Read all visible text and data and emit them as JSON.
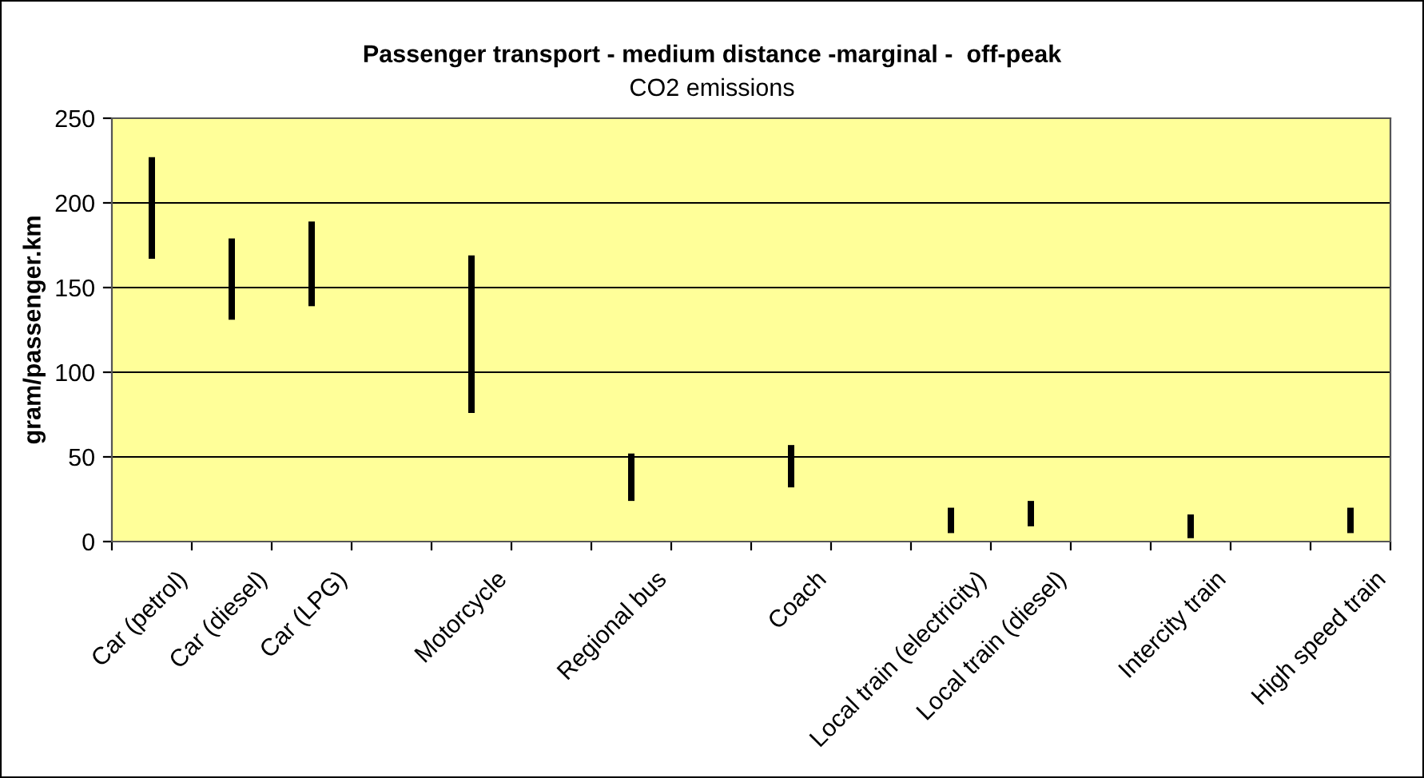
{
  "chart_data": {
    "type": "bar",
    "title": "Passenger transport - medium distance -marginal -  off-peak",
    "subtitle": "CO2 emissions",
    "ylabel": "gram/passenger.km",
    "categories": [
      "Car (petrol)",
      "Car (diesel)",
      "Car (LPG)",
      null,
      "Motorcycle",
      null,
      "Regional bus",
      null,
      "Coach",
      null,
      "Local train (electricity)",
      "Local train (diesel)",
      null,
      "Intercity train",
      null,
      "High speed train"
    ],
    "base": [
      167,
      131,
      139,
      null,
      76,
      null,
      24,
      null,
      32,
      null,
      5,
      9,
      null,
      2,
      null,
      5
    ],
    "values": [
      60,
      48,
      50,
      null,
      93,
      null,
      28,
      null,
      25,
      null,
      15,
      15,
      null,
      14,
      null,
      15
    ],
    "color": "#000000",
    "ylim": [
      0,
      250
    ],
    "yticks": [
      0,
      50,
      100,
      150,
      200,
      250
    ],
    "grid": "y"
  }
}
